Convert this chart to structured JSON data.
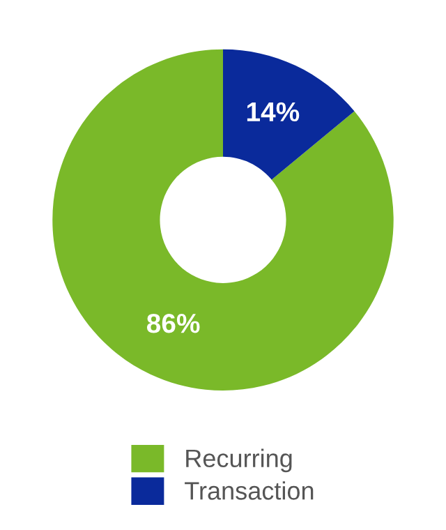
{
  "chart_data": {
    "type": "donut",
    "categories": [
      "Recurring",
      "Transaction"
    ],
    "values": [
      86,
      14
    ],
    "colors": [
      "#7ab929",
      "#0a2a9b"
    ],
    "value_labels": [
      "86%",
      "14%"
    ],
    "legend": "bottom"
  }
}
